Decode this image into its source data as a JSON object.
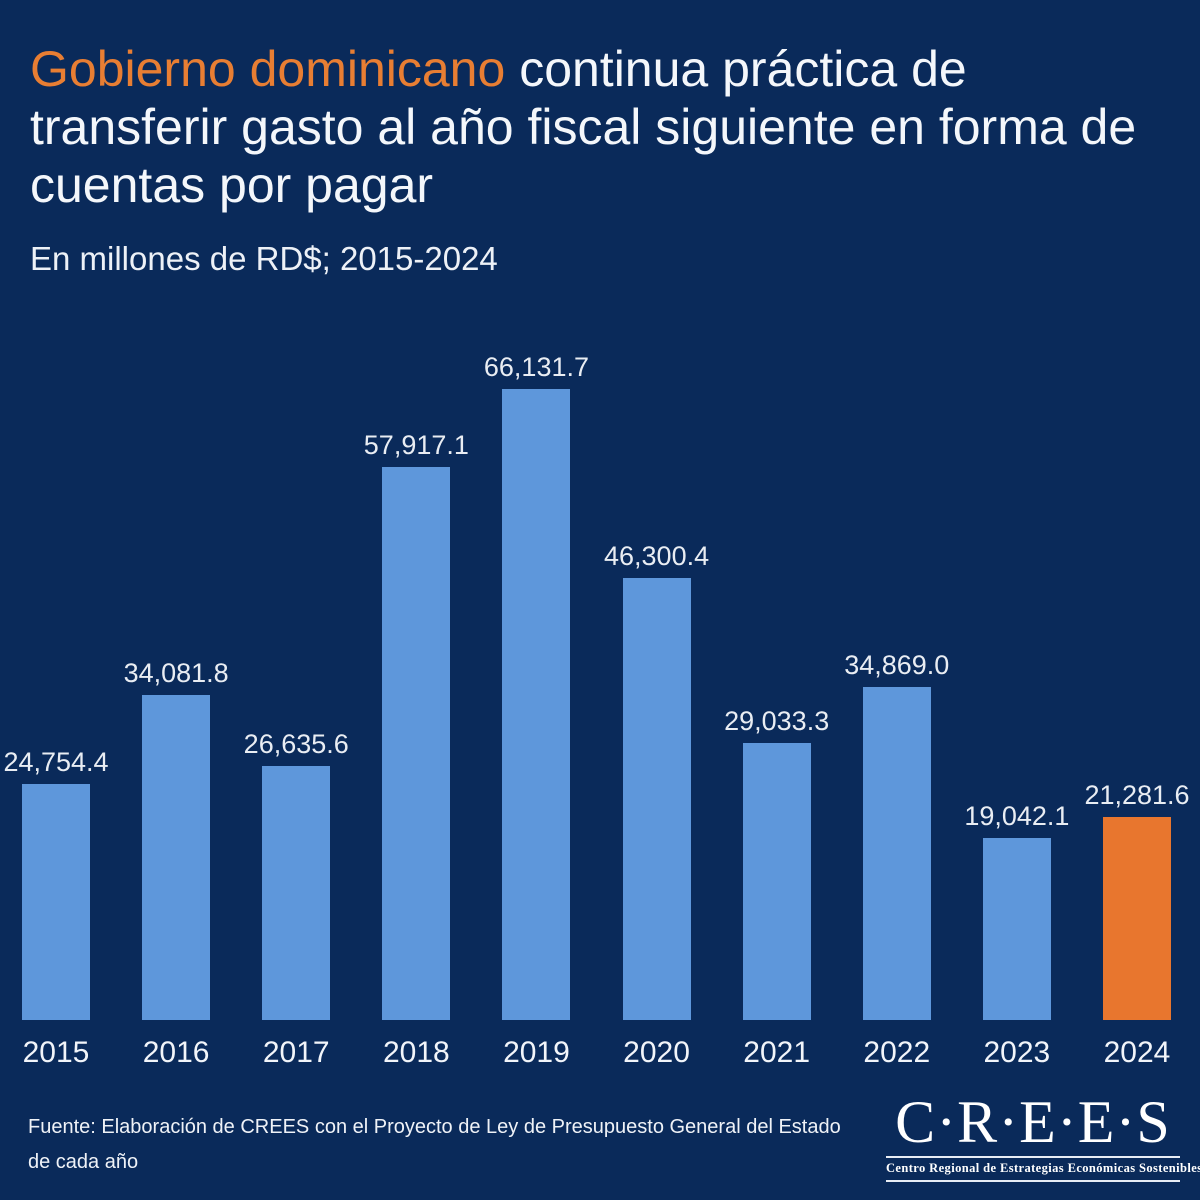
{
  "colors": {
    "background": "#0A2A5A",
    "title_highlight_orange": "#E87E33",
    "text_white": "#F4F7FB",
    "bar_blue": "#5E97DB",
    "bar_highlight_orange": "#E8762E"
  },
  "title": {
    "line1_highlight": "Gobierno dominicano",
    "line1_rest": " continua práctica de",
    "line2": "transferir gasto al año fiscal siguiente en forma de",
    "line3": "cuentas por pagar"
  },
  "subtitle": "En millones de RD$; 2015-2024",
  "chart_data": {
    "type": "bar",
    "title": "Gobierno dominicano continua práctica de transferir gasto al año fiscal siguiente en forma de cuentas por pagar",
    "units_label": "En millones de RD$; 2015-2024",
    "categories": [
      "2015",
      "2016",
      "2017",
      "2018",
      "2019",
      "2020",
      "2021",
      "2022",
      "2023",
      "2024"
    ],
    "values": [
      24754.4,
      34081.8,
      26635.6,
      57917.1,
      66131.7,
      46300.4,
      29033.3,
      34869.0,
      19042.1,
      21281.6
    ],
    "value_labels": [
      "24,754.4",
      "34,081.8",
      "26,635.6",
      "57,917.1",
      "66,131.7",
      "46,300.4",
      "29,033.3",
      "34,869.0",
      "19,042.1",
      "21,281.6"
    ],
    "highlight_index": 9,
    "bar_color": "#5E97DB",
    "highlight_color": "#E8762E",
    "xlabel": "",
    "ylabel": "",
    "ylim": [
      0,
      66131.7
    ],
    "grid": false,
    "legend": false,
    "data_labels": true
  },
  "footer": {
    "source_line1": "Fuente: Elaboración de CREES con el Proyecto de Ley de Presupuesto General del Estado",
    "source_line2": "de cada año"
  },
  "logo": {
    "name": "C·R·E·E·S",
    "tagline": "Centro Regional de Estrategias Económicas Sostenibles"
  }
}
